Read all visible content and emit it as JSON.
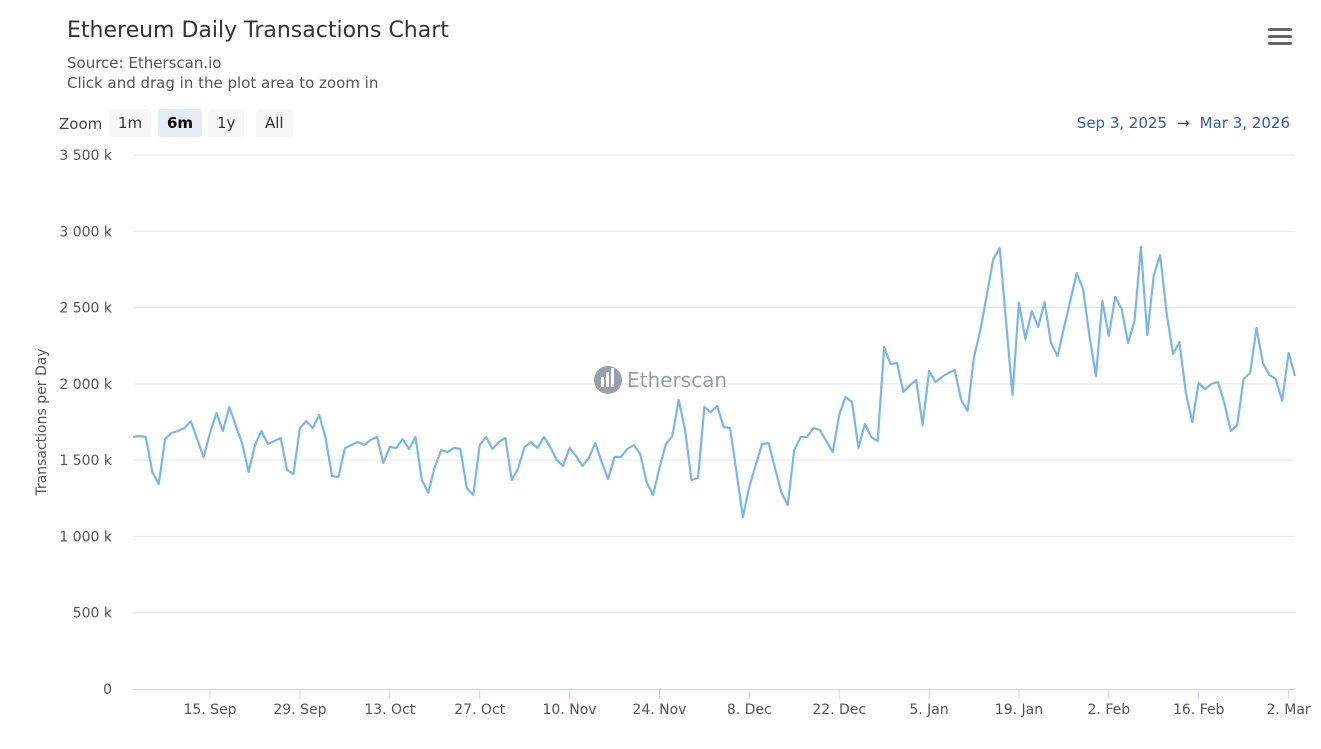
{
  "header": {
    "title": "Ethereum Daily Transactions Chart",
    "source": "Source: Etherscan.io",
    "hint": "Click and drag in the plot area to zoom in",
    "menu_icon": "hamburger-menu-icon"
  },
  "zoom": {
    "label": "Zoom",
    "buttons": [
      "1m",
      "6m",
      "1y",
      "All"
    ],
    "selected": "6m"
  },
  "range": {
    "from": "Sep 3, 2025",
    "arrow": "→",
    "to": "Mar 3, 2026"
  },
  "watermark": "Etherscan",
  "chart_data": {
    "type": "line",
    "title": "Ethereum Daily Transactions Chart",
    "ylabel": "Transactions per Day",
    "ylim": [
      0,
      3500000
    ],
    "yticks": [
      {
        "v": 0,
        "label": "0"
      },
      {
        "v": 500000,
        "label": "500 k"
      },
      {
        "v": 1000000,
        "label": "1 000 k"
      },
      {
        "v": 1500000,
        "label": "1 500 k"
      },
      {
        "v": 2000000,
        "label": "2 000 k"
      },
      {
        "v": 2500000,
        "label": "2 500 k"
      },
      {
        "v": 3000000,
        "label": "3 000 k"
      },
      {
        "v": 3500000,
        "label": "3 500 k"
      }
    ],
    "xticks": [
      {
        "date": "2025-09-15",
        "label": "15. Sep"
      },
      {
        "date": "2025-09-29",
        "label": "29. Sep"
      },
      {
        "date": "2025-10-13",
        "label": "13. Oct"
      },
      {
        "date": "2025-10-27",
        "label": "27. Oct"
      },
      {
        "date": "2025-11-10",
        "label": "10. Nov"
      },
      {
        "date": "2025-11-24",
        "label": "24. Nov"
      },
      {
        "date": "2025-12-08",
        "label": "8. Dec"
      },
      {
        "date": "2025-12-22",
        "label": "22. Dec"
      },
      {
        "date": "2026-01-05",
        "label": "5. Jan"
      },
      {
        "date": "2026-01-19",
        "label": "19. Jan"
      },
      {
        "date": "2026-02-02",
        "label": "2. Feb"
      },
      {
        "date": "2026-02-16",
        "label": "16. Feb"
      },
      {
        "date": "2026-03-02",
        "label": "2. Mar"
      }
    ],
    "grid": true,
    "color": "#7cb5ec",
    "x": [
      "2025-09-03",
      "2025-09-04",
      "2025-09-05",
      "2025-09-06",
      "2025-09-07",
      "2025-09-08",
      "2025-09-09",
      "2025-09-10",
      "2025-09-11",
      "2025-09-12",
      "2025-09-13",
      "2025-09-14",
      "2025-09-15",
      "2025-09-16",
      "2025-09-17",
      "2025-09-18",
      "2025-09-19",
      "2025-09-20",
      "2025-09-21",
      "2025-09-22",
      "2025-09-23",
      "2025-09-24",
      "2025-09-25",
      "2025-09-26",
      "2025-09-27",
      "2025-09-28",
      "2025-09-29",
      "2025-09-30",
      "2025-10-01",
      "2025-10-02",
      "2025-10-03",
      "2025-10-04",
      "2025-10-05",
      "2025-10-06",
      "2025-10-07",
      "2025-10-08",
      "2025-10-09",
      "2025-10-10",
      "2025-10-11",
      "2025-10-12",
      "2025-10-13",
      "2025-10-14",
      "2025-10-15",
      "2025-10-16",
      "2025-10-17",
      "2025-10-18",
      "2025-10-19",
      "2025-10-20",
      "2025-10-21",
      "2025-10-22",
      "2025-10-23",
      "2025-10-24",
      "2025-10-25",
      "2025-10-26",
      "2025-10-27",
      "2025-10-28",
      "2025-10-29",
      "2025-10-30",
      "2025-10-31",
      "2025-11-01",
      "2025-11-02",
      "2025-11-03",
      "2025-11-04",
      "2025-11-05",
      "2025-11-06",
      "2025-11-07",
      "2025-11-08",
      "2025-11-09",
      "2025-11-10",
      "2025-11-11",
      "2025-11-12",
      "2025-11-13",
      "2025-11-14",
      "2025-11-15",
      "2025-11-16",
      "2025-11-17",
      "2025-11-18",
      "2025-11-19",
      "2025-11-20",
      "2025-11-21",
      "2025-11-22",
      "2025-11-23",
      "2025-11-24",
      "2025-11-25",
      "2025-11-26",
      "2025-11-27",
      "2025-11-28",
      "2025-11-29",
      "2025-11-30",
      "2025-12-01",
      "2025-12-02",
      "2025-12-03",
      "2025-12-04",
      "2025-12-05",
      "2025-12-06",
      "2025-12-07",
      "2025-12-08",
      "2025-12-09",
      "2025-12-10",
      "2025-12-11",
      "2025-12-12",
      "2025-12-13",
      "2025-12-14",
      "2025-12-15",
      "2025-12-16",
      "2025-12-17",
      "2025-12-18",
      "2025-12-19",
      "2025-12-20",
      "2025-12-21",
      "2025-12-22",
      "2025-12-23",
      "2025-12-24",
      "2025-12-25",
      "2025-12-26",
      "2025-12-27",
      "2025-12-28",
      "2025-12-29",
      "2025-12-30",
      "2025-12-31",
      "2026-01-01",
      "2026-01-02",
      "2026-01-03",
      "2026-01-04",
      "2026-01-05",
      "2026-01-06",
      "2026-01-07",
      "2026-01-08",
      "2026-01-09",
      "2026-01-10",
      "2026-01-11",
      "2026-01-12",
      "2026-01-13",
      "2026-01-14",
      "2026-01-15",
      "2026-01-16",
      "2026-01-17",
      "2026-01-18",
      "2026-01-19",
      "2026-01-20",
      "2026-01-21",
      "2026-01-22",
      "2026-01-23",
      "2026-01-24",
      "2026-01-25",
      "2026-01-26",
      "2026-01-27",
      "2026-01-28",
      "2026-01-29",
      "2026-01-30",
      "2026-01-31",
      "2026-02-01",
      "2026-02-02",
      "2026-02-03",
      "2026-02-04",
      "2026-02-05",
      "2026-02-06",
      "2026-02-07",
      "2026-02-08",
      "2026-02-09",
      "2026-02-10",
      "2026-02-11",
      "2026-02-12",
      "2026-02-13",
      "2026-02-14",
      "2026-02-15",
      "2026-02-16",
      "2026-02-17",
      "2026-02-18",
      "2026-02-19",
      "2026-02-20",
      "2026-02-21",
      "2026-02-22",
      "2026-02-23",
      "2026-02-24",
      "2026-02-25",
      "2026-02-26",
      "2026-02-27",
      "2026-02-28",
      "2026-03-01",
      "2026-03-02",
      "2026-03-03"
    ],
    "values": [
      1652000,
      1658000,
      1652000,
      1422000,
      1343000,
      1638000,
      1678000,
      1691000,
      1711000,
      1756000,
      1638000,
      1520000,
      1678000,
      1809000,
      1691000,
      1848000,
      1730000,
      1612000,
      1422000,
      1599000,
      1691000,
      1606000,
      1625000,
      1645000,
      1435000,
      1409000,
      1711000,
      1756000,
      1711000,
      1796000,
      1645000,
      1396000,
      1389000,
      1579000,
      1599000,
      1619000,
      1599000,
      1632000,
      1652000,
      1481000,
      1586000,
      1579000,
      1638000,
      1573000,
      1652000,
      1370000,
      1285000,
      1455000,
      1566000,
      1553000,
      1580000,
      1573000,
      1317000,
      1271000,
      1599000,
      1652000,
      1573000,
      1619000,
      1645000,
      1370000,
      1448000,
      1586000,
      1619000,
      1580000,
      1652000,
      1586000,
      1501000,
      1462000,
      1580000,
      1527000,
      1462000,
      1514000,
      1612000,
      1488000,
      1376000,
      1521000,
      1521000,
      1573000,
      1599000,
      1540000,
      1357000,
      1271000,
      1448000,
      1606000,
      1658000,
      1894000,
      1697000,
      1370000,
      1383000,
      1848000,
      1815000,
      1855000,
      1717000,
      1711000,
      1422000,
      1127000,
      1324000,
      1468000,
      1606000,
      1612000,
      1448000,
      1285000,
      1206000,
      1566000,
      1652000,
      1652000,
      1711000,
      1697000,
      1625000,
      1553000,
      1796000,
      1914000,
      1881000,
      1580000,
      1737000,
      1652000,
      1625000,
      2241000,
      2130000,
      2137000,
      1947000,
      1992000,
      2025000,
      1730000,
      2084000,
      2012000,
      2045000,
      2071000,
      2091000,
      1894000,
      1822000,
      2176000,
      2353000,
      2582000,
      2818000,
      2890000,
      2405000,
      1927000,
      2530000,
      2294000,
      2477000,
      2373000,
      2536000,
      2268000,
      2182000,
      2366000,
      2543000,
      2726000,
      2622000,
      2307000,
      2051000,
      2543000,
      2314000,
      2569000,
      2490000,
      2268000,
      2412000,
      2897000,
      2320000,
      2713000,
      2844000,
      2464000,
      2196000,
      2274000,
      1940000,
      1750000,
      2006000,
      1966000,
      1999000,
      2012000,
      1874000,
      1691000,
      1730000,
      2032000,
      2071000,
      2366000,
      2137000,
      2058000,
      2032000,
      1888000,
      2202000,
      2051000
    ]
  }
}
